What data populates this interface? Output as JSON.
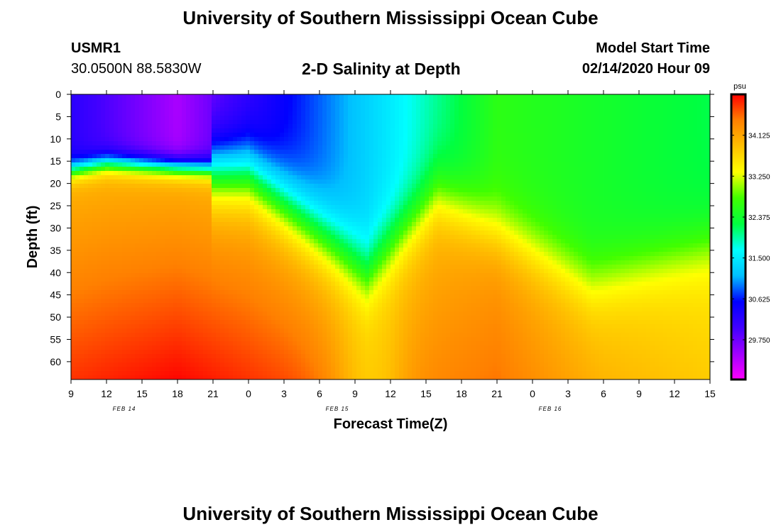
{
  "header": {
    "title": "University of Southern Mississippi Ocean Cube",
    "station_id": "USMR1",
    "station_coords": "30.0500N 88.5830W",
    "plot_title": "2-D Salinity at Depth",
    "model_start_label": "Model Start Time",
    "model_start_value": "02/14/2020 Hour 09"
  },
  "footer": {
    "title": "University of Southern Mississippi Ocean Cube"
  },
  "chart_data": {
    "type": "heatmap",
    "xlabel": "Forecast Time(Z)",
    "ylabel": "Depth (ft)",
    "x_tick_labels": [
      "9",
      "12",
      "15",
      "18",
      "21",
      "0",
      "3",
      "6",
      "9",
      "12",
      "15",
      "18",
      "21",
      "0",
      "3",
      "6",
      "9",
      "12",
      "15"
    ],
    "x_day_labels": [
      {
        "label": "FEB 14",
        "tick_index": 1.5
      },
      {
        "label": "FEB 15",
        "tick_index": 7.5
      },
      {
        "label": "FEB 16",
        "tick_index": 13.5
      }
    ],
    "x_range_hours": [
      0,
      54
    ],
    "y_ticks": [
      0,
      5,
      10,
      15,
      20,
      25,
      30,
      35,
      40,
      45,
      50,
      55,
      60
    ],
    "ylim": [
      0,
      64
    ],
    "y_inverted": true,
    "colorbar": {
      "unit": "psu",
      "ticks": [
        "34.125",
        "33.250",
        "32.375",
        "31.500",
        "30.625",
        "29.750"
      ],
      "range": [
        28.9,
        35.0
      ],
      "colors": [
        "#ff00ff",
        "#a000ff",
        "#4000ff",
        "#0000ff",
        "#00c0ff",
        "#00ffff",
        "#00ff40",
        "#40ff00",
        "#ffff00",
        "#ffc000",
        "#ff8000",
        "#ff0000"
      ]
    },
    "surface_layer_salinity": [
      {
        "hour": 0,
        "value": 30.2
      },
      {
        "hour": 9,
        "value": 29.4
      },
      {
        "hour": 18,
        "value": 30.5
      },
      {
        "hour": 27,
        "value": 31.5
      },
      {
        "hour": 36,
        "value": 32.6
      },
      {
        "hour": 45,
        "value": 32.4
      },
      {
        "hour": 54,
        "value": 32.2
      }
    ],
    "bottom_layer_salinity": [
      {
        "hour": 0,
        "value": 34.8
      },
      {
        "hour": 9,
        "value": 35.0
      },
      {
        "hour": 18,
        "value": 34.7
      },
      {
        "hour": 27,
        "value": 34.3
      },
      {
        "hour": 36,
        "value": 34.5
      },
      {
        "hour": 45,
        "value": 34.0
      },
      {
        "hour": 54,
        "value": 33.8
      }
    ]
  }
}
